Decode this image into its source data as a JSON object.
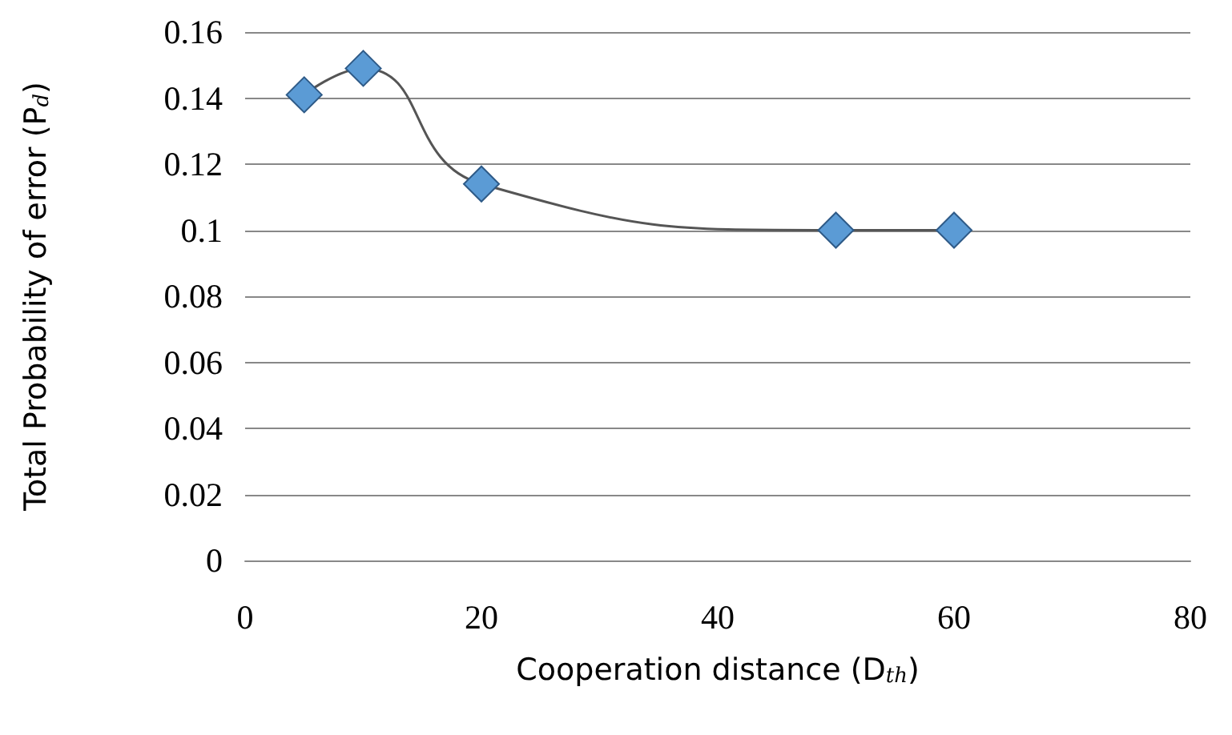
{
  "chart_data": {
    "type": "line",
    "xlabel": "Cooperation distance (D$_{th}$)",
    "ylabel": "Total Probability of error (P$_{d}$)",
    "series": [
      {
        "color": "#5b9bd5",
        "x": [
          5,
          10,
          20,
          50,
          60
        ],
        "values": [
          0.141,
          0.149,
          0.114,
          0.1,
          0.1
        ]
      }
    ],
    "xlim": [
      0,
      80
    ],
    "xticks": [
      0,
      20,
      40,
      60,
      80
    ],
    "ylim": [
      0,
      0.16
    ],
    "yticks": [
      0,
      0.02,
      0.04,
      0.06,
      0.08,
      0.1,
      0.12,
      0.14,
      0.16
    ],
    "grid": "y",
    "marker": "diamond",
    "line_style": "solid"
  }
}
